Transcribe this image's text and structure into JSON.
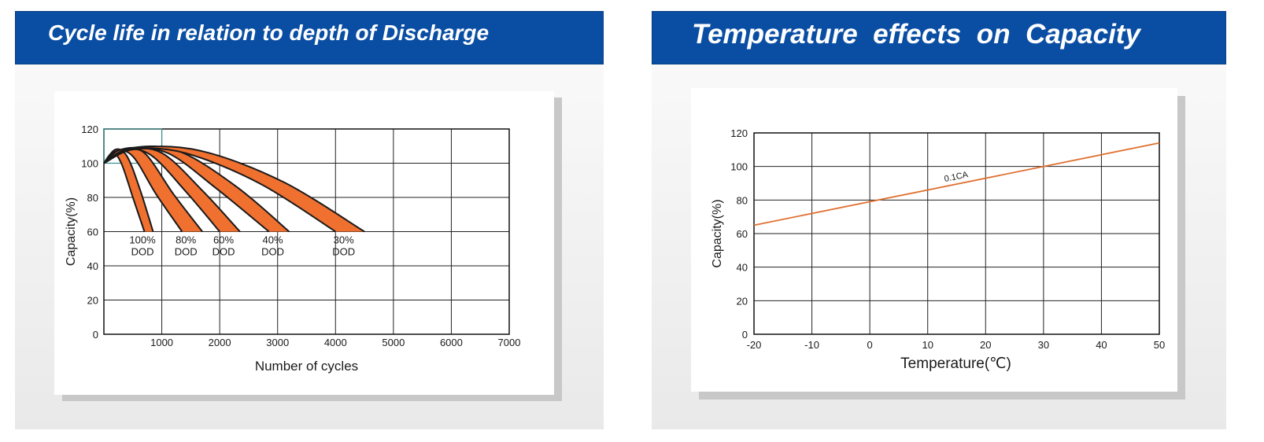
{
  "left_panel": {
    "title": "Cycle life in relation to depth of Discharge"
  },
  "right_panel": {
    "title": "Temperature  effects  on  Capacity"
  },
  "chart_data": [
    {
      "type": "line",
      "title": "Cycle life in relation to depth of Discharge",
      "xlabel": "Number of cycles",
      "ylabel": "Capacity(%)",
      "xlim": [
        0,
        7000
      ],
      "ylim": [
        0,
        120
      ],
      "xticks": [
        1000,
        2000,
        3000,
        4000,
        5000,
        6000,
        7000
      ],
      "yticks": [
        0,
        20,
        40,
        60,
        80,
        100,
        120
      ],
      "grid": true,
      "fill_color": "#f07030",
      "series": [
        {
          "name": "100% DOD",
          "label_line1": "100%",
          "label_line2": "DOD",
          "upper": [
            [
              0,
              100
            ],
            [
              200,
              108
            ],
            [
              400,
              104
            ],
            [
              620,
              85
            ],
            [
              850,
              60
            ]
          ],
          "lower": [
            [
              0,
              100
            ],
            [
              150,
              106
            ],
            [
              300,
              100
            ],
            [
              500,
              80
            ],
            [
              700,
              60
            ]
          ]
        },
        {
          "name": "80% DOD",
          "label_line1": "80%",
          "label_line2": "DOD",
          "upper": [
            [
              0,
              100
            ],
            [
              300,
              108
            ],
            [
              700,
              106
            ],
            [
              1200,
              82
            ],
            [
              1700,
              60
            ]
          ],
          "lower": [
            [
              0,
              100
            ],
            [
              200,
              107
            ],
            [
              500,
              104
            ],
            [
              900,
              82
            ],
            [
              1350,
              60
            ]
          ]
        },
        {
          "name": "60% DOD",
          "label_line1": "60%",
          "label_line2": "DOD",
          "upper": [
            [
              0,
              100
            ],
            [
              400,
              108
            ],
            [
              1000,
              106
            ],
            [
              1700,
              84
            ],
            [
              2350,
              60
            ]
          ],
          "lower": [
            [
              0,
              100
            ],
            [
              300,
              108
            ],
            [
              800,
              105
            ],
            [
              1400,
              84
            ],
            [
              2000,
              60
            ]
          ]
        },
        {
          "name": "40% DOD",
          "label_line1": "40%",
          "label_line2": "DOD",
          "upper": [
            [
              0,
              100
            ],
            [
              500,
              109
            ],
            [
              1300,
              107
            ],
            [
              2300,
              86
            ],
            [
              3200,
              60
            ]
          ],
          "lower": [
            [
              0,
              100
            ],
            [
              400,
              108
            ],
            [
              1100,
              106
            ],
            [
              1950,
              85
            ],
            [
              2850,
              60
            ]
          ]
        },
        {
          "name": "30% DOD",
          "label_line1": "30%",
          "label_line2": "DOD",
          "upper": [
            [
              0,
              100
            ],
            [
              600,
              109
            ],
            [
              1700,
              107
            ],
            [
              3100,
              89
            ],
            [
              4500,
              60
            ]
          ],
          "lower": [
            [
              0,
              100
            ],
            [
              500,
              108
            ],
            [
              1400,
              106
            ],
            [
              2700,
              88
            ],
            [
              4000,
              60
            ]
          ]
        }
      ]
    },
    {
      "type": "line",
      "title": "Temperature  effects  on  Capacity",
      "xlabel": "Temperature(℃)",
      "ylabel": "Capacity(%)",
      "xlim": [
        -20,
        50
      ],
      "ylim": [
        0,
        120
      ],
      "xticks": [
        -20,
        -10,
        0,
        10,
        20,
        30,
        40,
        50
      ],
      "yticks": [
        0,
        20,
        40,
        60,
        80,
        100,
        120
      ],
      "grid": true,
      "series": [
        {
          "name": "0.1CA",
          "color": "#e07030",
          "x": [
            -20,
            50
          ],
          "y": [
            65,
            114
          ]
        }
      ]
    }
  ]
}
